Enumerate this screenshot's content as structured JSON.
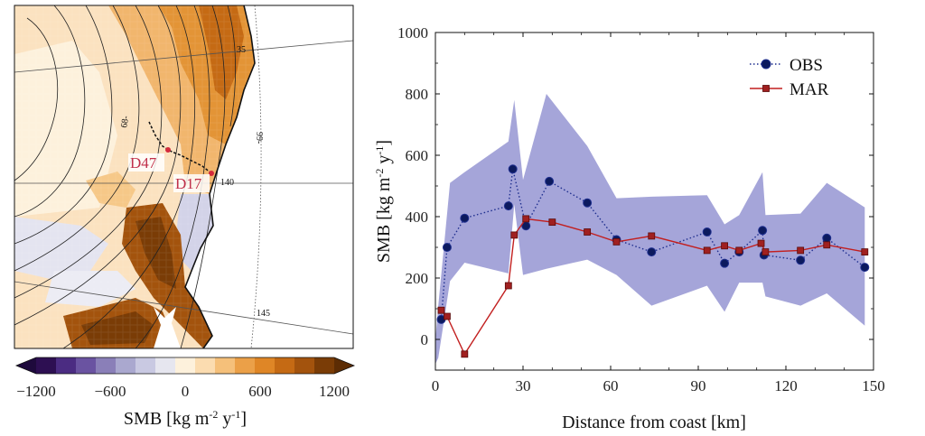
{
  "map": {
    "contour_labels": [
      "35",
      "99-",
      "68-",
      "140",
      "145"
    ],
    "stations": [
      "D47",
      "D17"
    ]
  },
  "colorbar": {
    "label": "SMB [kg m-2 y-1]",
    "ticks": [
      "−1200",
      "−600",
      "0",
      "600",
      "1200"
    ],
    "colors": [
      "#2d0f52",
      "#4b2c82",
      "#6a53a1",
      "#8a7fb8",
      "#aaa8cf",
      "#c9c9e2",
      "#e6e6ef",
      "#fdf1dc",
      "#fbdcb0",
      "#f5c07a",
      "#eba048",
      "#df8626",
      "#c56a14",
      "#a3530d",
      "#7a3c06"
    ]
  },
  "chart_data": {
    "type": "line",
    "xlabel": "Distance from coast [km]",
    "ylabel": "SMB [kg m-2 y-1]",
    "xlim": [
      0,
      150
    ],
    "ylim": [
      -100,
      1000
    ],
    "xticks": [
      0,
      30,
      60,
      90,
      120,
      150
    ],
    "yticks": [
      0,
      200,
      400,
      600,
      800,
      1000
    ],
    "legend_position": "top-right",
    "series": [
      {
        "name": "OBS",
        "style": "dotted-circles",
        "color": "#1f2f8f",
        "x": [
          2,
          4,
          10,
          25,
          26.5,
          31,
          39,
          52,
          62,
          74,
          93,
          99,
          104,
          112,
          112.5,
          125,
          134,
          147
        ],
        "values": [
          65,
          300,
          395,
          435,
          555,
          370,
          515,
          445,
          325,
          285,
          350,
          248,
          285,
          355,
          275,
          258,
          330,
          235
        ]
      },
      {
        "name": "MAR",
        "style": "solid-squares",
        "color": "#c21f1f",
        "x": [
          2,
          4,
          10,
          25,
          27,
          31,
          40,
          52,
          62,
          74,
          93,
          99,
          104,
          111.5,
          113,
          125,
          134,
          147
        ],
        "values": [
          95,
          75,
          -48,
          175,
          340,
          393,
          382,
          350,
          318,
          337,
          290,
          305,
          290,
          313,
          285,
          290,
          308,
          285
        ]
      }
    ],
    "band": {
      "color": "#8f8fd0",
      "x": [
        0,
        1,
        5,
        10,
        25,
        27,
        30,
        38,
        52,
        62,
        74,
        93,
        99,
        104,
        112,
        113,
        125,
        134,
        147
      ],
      "upper": [
        0,
        110,
        510,
        545,
        645,
        780,
        520,
        800,
        630,
        460,
        465,
        470,
        375,
        405,
        545,
        405,
        410,
        510,
        430
      ],
      "lower": [
        -80,
        -60,
        190,
        250,
        215,
        440,
        210,
        230,
        260,
        210,
        110,
        175,
        90,
        185,
        185,
        140,
        110,
        150,
        45
      ]
    }
  }
}
